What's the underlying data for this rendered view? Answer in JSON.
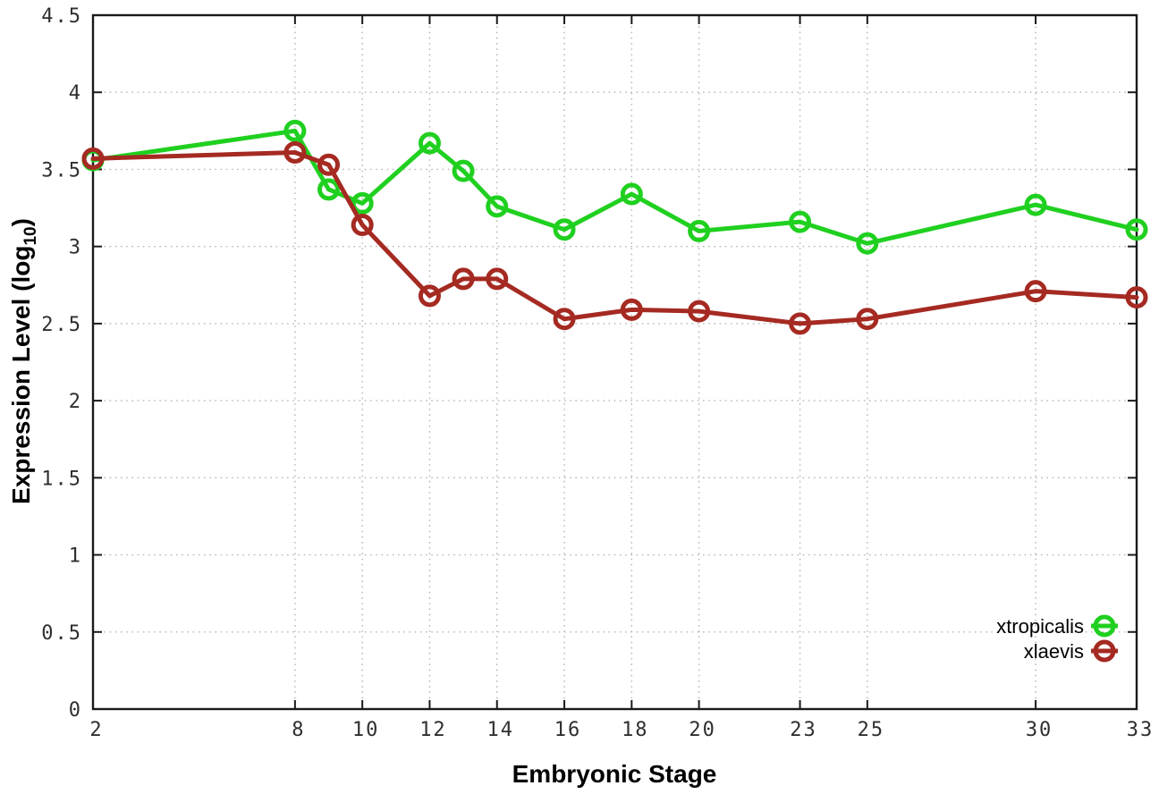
{
  "chart_data": {
    "type": "line",
    "title": "",
    "xlabel": "Embryonic Stage",
    "ylabel": {
      "text": "Expression Level (log",
      "sub": "10",
      "suffix": ")"
    },
    "xlim": [
      2,
      33
    ],
    "ylim": [
      0,
      4.5
    ],
    "grid": true,
    "grid_style": "dotted",
    "legend_position": "bottom-right-inside",
    "background_color": "#ffffff",
    "border_color": "#1a1a1a",
    "grid_color": "#b5b5b5",
    "tick_label_color": "#2f2f2f",
    "x_ticks": [
      2,
      8,
      10,
      12,
      14,
      16,
      18,
      20,
      23,
      25,
      30,
      33
    ],
    "x_tick_labels": [
      "2",
      "8",
      "10",
      "12",
      "14",
      "16",
      "18",
      "20",
      "23",
      "25",
      "30",
      "33"
    ],
    "y_ticks": [
      0,
      0.5,
      1,
      1.5,
      2,
      2.5,
      3,
      3.5,
      4,
      4.5
    ],
    "y_tick_labels": [
      "0",
      "0.5",
      "1",
      "1.5",
      "2",
      "2.5",
      "3",
      "3.5",
      "4",
      "4.5"
    ],
    "x": [
      2,
      8,
      9,
      10,
      12,
      13,
      14,
      16,
      18,
      20,
      23,
      25,
      30,
      33
    ],
    "series": [
      {
        "name": "xtropicalis",
        "color": "#20d020",
        "marker": "open-circle",
        "values": [
          3.56,
          3.75,
          3.37,
          3.28,
          3.67,
          3.49,
          3.26,
          3.11,
          3.34,
          3.1,
          3.16,
          3.02,
          3.27,
          3.11
        ]
      },
      {
        "name": "xlaevis",
        "color": "#a52a22",
        "marker": "open-circle",
        "values": [
          3.57,
          3.61,
          3.53,
          3.14,
          2.68,
          2.79,
          2.79,
          2.53,
          2.59,
          2.58,
          2.5,
          2.53,
          2.71,
          2.67
        ]
      }
    ]
  }
}
